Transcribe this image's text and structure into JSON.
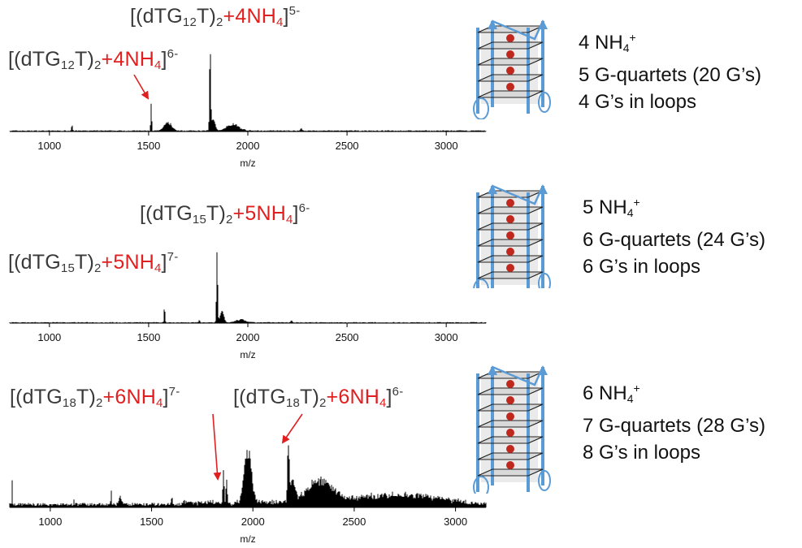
{
  "chart_data": [
    {
      "type": "line",
      "panel": "top",
      "xlabel": "m/z",
      "xlim": [
        800,
        3200
      ],
      "xticks": [
        1000,
        1500,
        2000,
        2500,
        3000
      ],
      "peaks": [
        {
          "x": 1114,
          "h": 0.07,
          "w": 3
        },
        {
          "x": 1513,
          "h": 0.33,
          "w": 2.5
        },
        {
          "x": 1598,
          "h": 0.1,
          "w": 18
        },
        {
          "x": 1810,
          "h": 1.0,
          "w": 3
        },
        {
          "x": 1825,
          "h": 0.14,
          "w": 10
        },
        {
          "x": 1925,
          "h": 0.08,
          "w": 30
        },
        {
          "x": 2270,
          "h": 0.03,
          "w": 4
        }
      ],
      "baseline": 0.01,
      "annotations": [
        {
          "parts": [
            "[(dTG",
            {
              "sub": "12"
            },
            "T)",
            {
              "sub": "2"
            },
            {
              "red": "+4NH"
            },
            {
              "redsub": "4"
            },
            "]",
            {
              "sup": "6-"
            }
          ],
          "target_x": 1513
        },
        {
          "parts": [
            "[(dTG",
            {
              "sub": "12"
            },
            "T)",
            {
              "sub": "2"
            },
            {
              "red": "+4NH"
            },
            {
              "redsub": "4"
            },
            "]",
            {
              "sup": "5-"
            }
          ],
          "target_x": 1810
        }
      ]
    },
    {
      "type": "line",
      "panel": "middle",
      "xlabel": "m/z",
      "xlim": [
        800,
        3200
      ],
      "xticks": [
        1000,
        1500,
        2000,
        2500,
        3000
      ],
      "peaks": [
        {
          "x": 1580,
          "h": 0.23,
          "w": 2.5
        },
        {
          "x": 1755,
          "h": 0.03,
          "w": 3
        },
        {
          "x": 1845,
          "h": 1.0,
          "w": 3
        },
        {
          "x": 1870,
          "h": 0.16,
          "w": 9
        },
        {
          "x": 1965,
          "h": 0.04,
          "w": 22
        },
        {
          "x": 2220,
          "h": 0.03,
          "w": 4
        }
      ],
      "baseline": 0.01,
      "annotations": [
        {
          "parts": [
            "[(dTG",
            {
              "sub": "15"
            },
            "T)",
            {
              "sub": "2"
            },
            {
              "red": "+5NH"
            },
            {
              "redsub": "4"
            },
            "]",
            {
              "sup": "7-"
            }
          ],
          "target_x": 1580
        },
        {
          "parts": [
            "[(dTG",
            {
              "sub": "15"
            },
            "T)",
            {
              "sub": "2"
            },
            {
              "red": "+5NH"
            },
            {
              "redsub": "4"
            },
            "]",
            {
              "sup": "6-"
            }
          ],
          "target_x": 1845
        }
      ]
    },
    {
      "type": "line",
      "panel": "bottom",
      "xlabel": "m/z",
      "xlim": [
        800,
        3150
      ],
      "xticks": [
        1000,
        1500,
        2000,
        2500,
        3000
      ],
      "peaks": [
        {
          "x": 812,
          "h": 0.42,
          "w": 1.5
        },
        {
          "x": 1117,
          "h": 0.07,
          "w": 2
        },
        {
          "x": 1300,
          "h": 0.3,
          "w": 1.5
        },
        {
          "x": 1345,
          "h": 0.12,
          "w": 6
        },
        {
          "x": 1600,
          "h": 0.18,
          "w": 2
        },
        {
          "x": 1855,
          "h": 0.55,
          "w": 3
        },
        {
          "x": 1870,
          "h": 0.4,
          "w": 3
        },
        {
          "x": 1975,
          "h": 0.78,
          "w": 18
        },
        {
          "x": 2175,
          "h": 1.0,
          "w": 4
        },
        {
          "x": 2195,
          "h": 0.35,
          "w": 12
        },
        {
          "x": 2330,
          "h": 0.35,
          "w": 60
        },
        {
          "x": 2700,
          "h": 0.12,
          "w": 200
        }
      ],
      "baseline": 0.05,
      "annotations": [
        {
          "parts": [
            "[(dTG",
            {
              "sub": "18"
            },
            "T)",
            {
              "sub": "2"
            },
            {
              "red": "+6NH"
            },
            {
              "redsub": "4"
            },
            "]",
            {
              "sup": "7-"
            }
          ],
          "target_x": 1855
        },
        {
          "parts": [
            "[(dTG",
            {
              "sub": "18"
            },
            "T)",
            {
              "sub": "2"
            },
            {
              "red": "+6NH"
            },
            {
              "redsub": "4"
            },
            "]",
            {
              "sup": "6-"
            }
          ],
          "target_x": 2175
        }
      ]
    }
  ],
  "structures": [
    {
      "quartets": 5,
      "ions": 4,
      "info": [
        [
          "4 NH",
          {
            "sub": "4"
          },
          {
            "sup": "+"
          }
        ],
        [
          "5 G-quartets (20 G’s)"
        ],
        [
          "4 G’s in loops"
        ]
      ]
    },
    {
      "quartets": 6,
      "ions": 5,
      "info": [
        [
          "5 NH",
          {
            "sub": "4"
          },
          {
            "sup": "+"
          }
        ],
        [
          "6 G-quartets (24 G’s)"
        ],
        [
          "6 G’s in loops"
        ]
      ]
    },
    {
      "quartets": 7,
      "ions": 6,
      "info": [
        [
          "6 NH",
          {
            "sub": "4"
          },
          {
            "sup": "+"
          }
        ],
        [
          "7 G-quartets (28 G’s)"
        ],
        [
          "8 G’s in loops"
        ]
      ]
    }
  ],
  "colors": {
    "trace": "#000000",
    "label_red": "#e02020",
    "label_gray": "#3a3a3a",
    "strand_blue": "#5b9bd5",
    "quartet_fill": "#d9d9d9",
    "ion_red": "#c0281e"
  }
}
